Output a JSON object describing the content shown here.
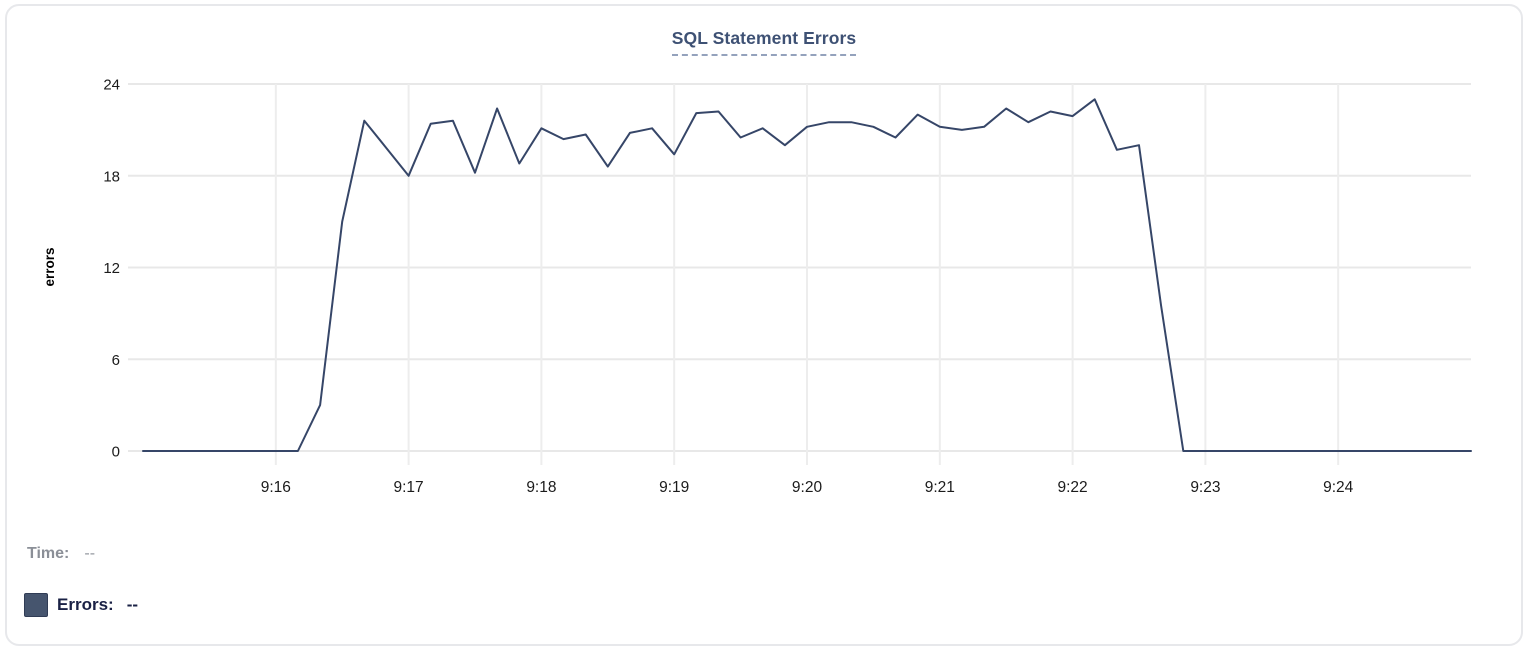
{
  "readout": {
    "time_label": "Time:",
    "time_value": "--",
    "errors_label": "Errors:",
    "errors_value": "--",
    "swatch_color": "#46556E"
  },
  "colors": {
    "line": "#364668",
    "h_grid": "#E8E8E8",
    "v_grid": "#EDEDED",
    "tick_text": "#1B1B1B",
    "axis_label_text": "#000000",
    "title": "#3E5174",
    "title_underline": "#94A2BC",
    "card_border": "#E7E8EB"
  },
  "chart_data": {
    "type": "line",
    "title": "SQL Statement Errors",
    "xlabel": "",
    "ylabel": "errors",
    "x_start": "9:15:00",
    "x_end": "9:25:00",
    "sample_interval_seconds": 10,
    "xlim_minutes": [
      0,
      10
    ],
    "ylim": [
      0,
      24
    ],
    "grid": true,
    "x_tick_labels": [
      "9:16",
      "9:17",
      "9:18",
      "9:19",
      "9:20",
      "9:21",
      "9:22",
      "9:23",
      "9:24"
    ],
    "x_tick_minutes": [
      1,
      2,
      3,
      4,
      5,
      6,
      7,
      8,
      9
    ],
    "y_ticks": [
      0,
      6,
      12,
      18,
      24
    ],
    "series": [
      {
        "name": "Errors",
        "color": "#364668",
        "values": [
          0,
          0,
          0,
          0,
          0,
          0,
          0,
          0,
          3,
          15,
          21.6,
          19.8,
          18,
          21.4,
          21.6,
          18.2,
          22.4,
          18.8,
          21.1,
          20.4,
          20.7,
          18.6,
          20.8,
          21.1,
          19.4,
          22.1,
          22.2,
          20.5,
          21.1,
          20,
          21.2,
          21.5,
          21.5,
          21.2,
          20.5,
          22,
          21.2,
          21,
          21.2,
          22.4,
          21.5,
          22.2,
          21.9,
          23,
          19.7,
          20,
          9.5,
          0,
          0,
          0,
          0,
          0,
          0,
          0,
          0,
          0,
          0,
          0,
          0,
          0,
          0
        ]
      }
    ],
    "legend_position": "below-left"
  }
}
